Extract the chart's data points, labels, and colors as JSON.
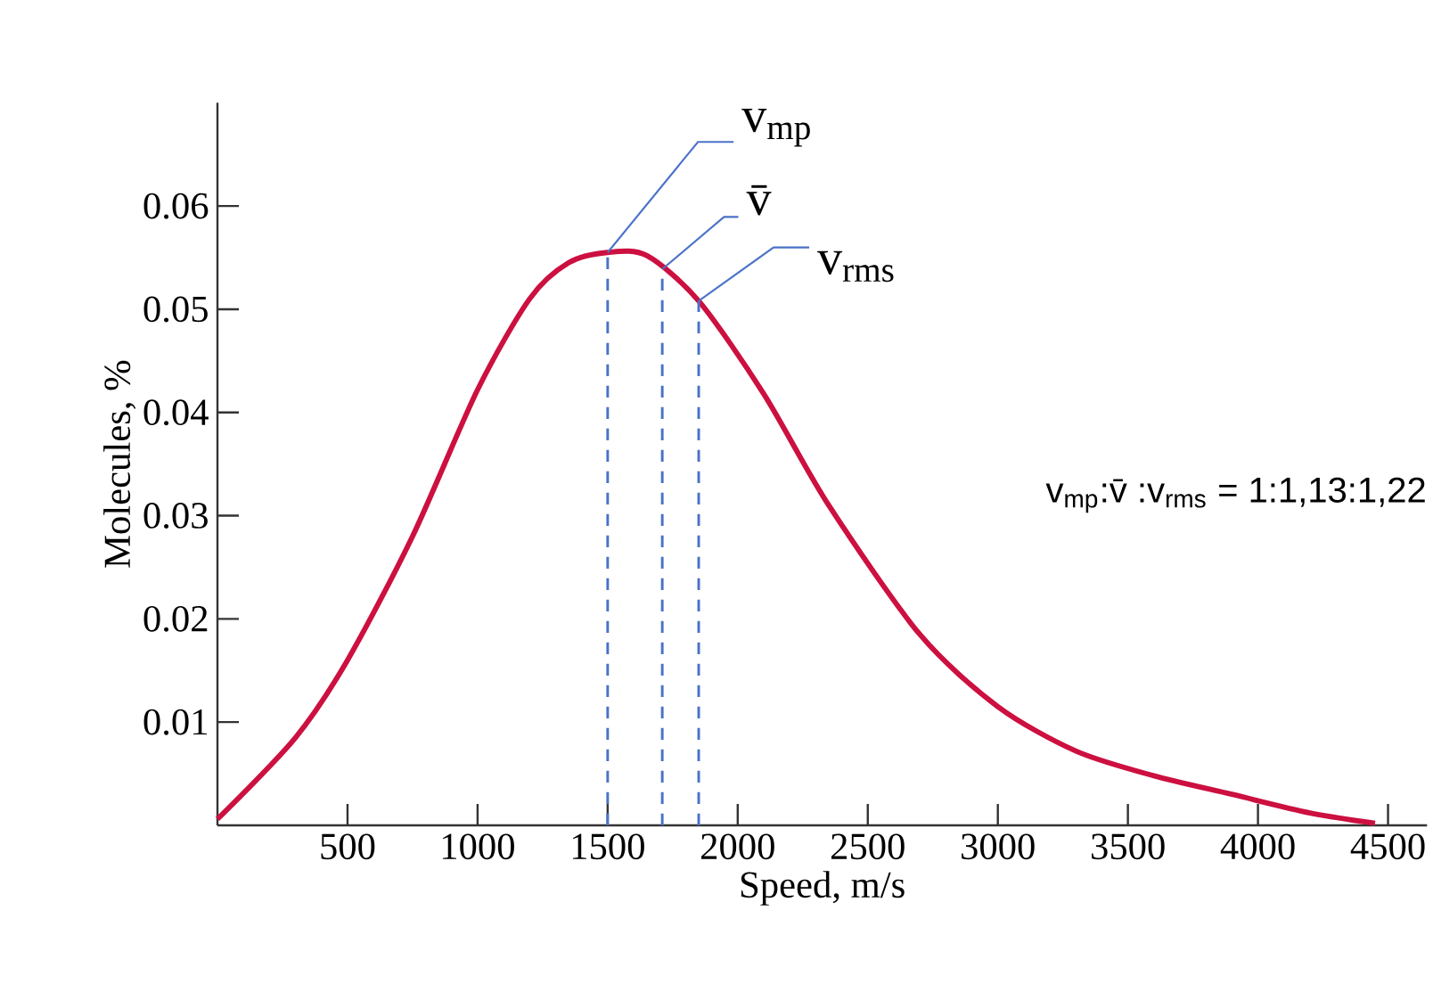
{
  "chart_data": {
    "type": "line",
    "xlabel": "Speed, m/s",
    "ylabel": "Molecules, %",
    "x": [
      0,
      300,
      500,
      750,
      1000,
      1200,
      1350,
      1500,
      1650,
      1850,
      2100,
      2350,
      2700,
      3000,
      3300,
      3600,
      3900,
      4200,
      4450
    ],
    "series": [
      {
        "color": "#cc1040",
        "values": [
          0.0006,
          0.0085,
          0.016,
          0.028,
          0.0422,
          0.051,
          0.0545,
          0.0555,
          0.0552,
          0.0508,
          0.0418,
          0.031,
          0.0185,
          0.0115,
          0.0072,
          0.0048,
          0.003,
          0.0012,
          0.0002
        ]
      }
    ],
    "xlim": [
      0,
      4650
    ],
    "ylim": [
      0,
      0.07
    ],
    "xticks": [
      500,
      1000,
      1500,
      2000,
      2500,
      3000,
      3500,
      4000,
      4500
    ],
    "yticks": [
      0.01,
      0.02,
      0.03,
      0.04,
      0.05,
      0.06
    ],
    "ref_lines": [
      {
        "axis": "x",
        "value": 1500,
        "label": "v$_{mp}$",
        "color": "#4a72c8",
        "line_style": "dashed"
      },
      {
        "axis": "x",
        "value": 1710,
        "label": "v̄",
        "color": "#4a72c8",
        "line_style": "dashed"
      },
      {
        "axis": "x",
        "value": 1850,
        "label": "v$_{rms}$",
        "color": "#4a72c8",
        "line_style": "dashed"
      }
    ],
    "annotations": [
      "v$_{mp}$:v̄ :v$_{rms}$ =  1:1,13:1,22"
    ],
    "grid": false,
    "marker": "none",
    "line_style": "solid"
  }
}
